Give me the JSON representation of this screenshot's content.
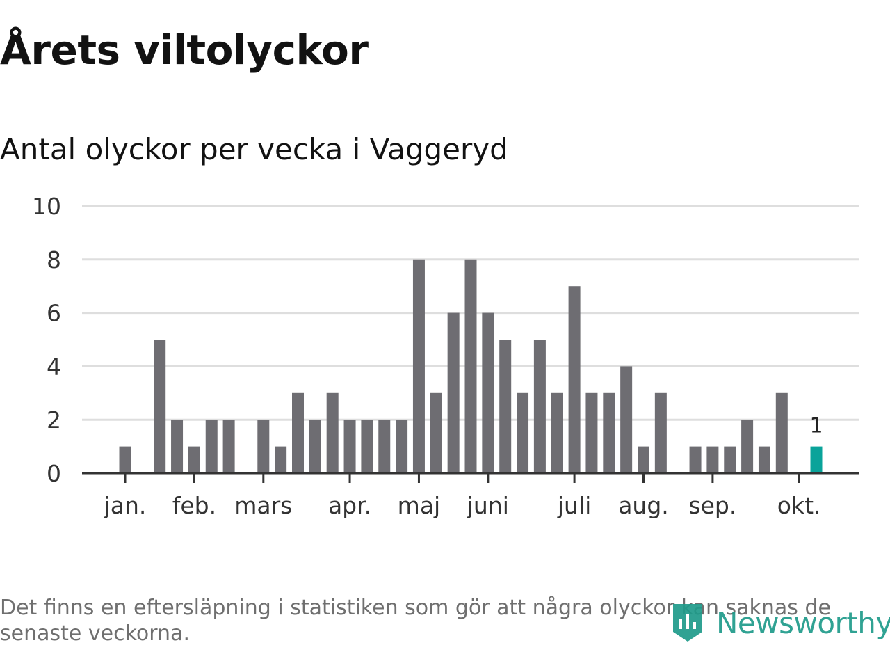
{
  "header": {
    "title": "Årets viltolyckor",
    "subtitle": "Antal olyckor per vecka i Vaggeryd"
  },
  "chart_data": {
    "type": "bar",
    "title": "Årets viltolyckor",
    "subtitle": "Antal olyckor per vecka i Vaggeryd",
    "xlabel": "",
    "ylabel": "",
    "ylim": [
      0,
      10
    ],
    "y_ticks": [
      0,
      2,
      4,
      6,
      8,
      10
    ],
    "grid": true,
    "weeks": [
      1,
      2,
      3,
      4,
      5,
      6,
      7,
      8,
      9,
      10,
      11,
      12,
      13,
      14,
      15,
      16,
      17,
      18,
      19,
      20,
      21,
      22,
      23,
      24,
      25,
      26,
      27,
      28,
      29,
      30,
      31,
      32,
      33,
      34,
      35,
      36,
      37,
      38,
      39,
      40,
      41,
      42
    ],
    "values": [
      1,
      0,
      5,
      2,
      1,
      2,
      2,
      0,
      2,
      1,
      3,
      2,
      3,
      2,
      2,
      2,
      2,
      8,
      3,
      6,
      8,
      6,
      5,
      3,
      5,
      3,
      7,
      3,
      3,
      4,
      1,
      3,
      0,
      1,
      1,
      1,
      2,
      1,
      3,
      0,
      1,
      0
    ],
    "highlight_week": 41,
    "highlight_label": "1",
    "month_labels": [
      {
        "label": "jan.",
        "week": 1
      },
      {
        "label": "feb.",
        "week": 5
      },
      {
        "label": "mars",
        "week": 9
      },
      {
        "label": "apr.",
        "week": 14
      },
      {
        "label": "maj",
        "week": 18
      },
      {
        "label": "juni",
        "week": 22
      },
      {
        "label": "juli",
        "week": 27
      },
      {
        "label": "aug.",
        "week": 31
      },
      {
        "label": "sep.",
        "week": 35
      },
      {
        "label": "okt.",
        "week": 40
      }
    ]
  },
  "colors": {
    "bar": "#6e6d72",
    "highlight": "#0aa39a",
    "grid": "#dedede",
    "axis": "#333333"
  },
  "footnote": "Det finns en eftersläpning i statistiken som gör att några olyckor kan saknas de senaste veckorna.",
  "logo": {
    "text": "Newsworthy",
    "icon": "newsworthy-logo-icon"
  }
}
